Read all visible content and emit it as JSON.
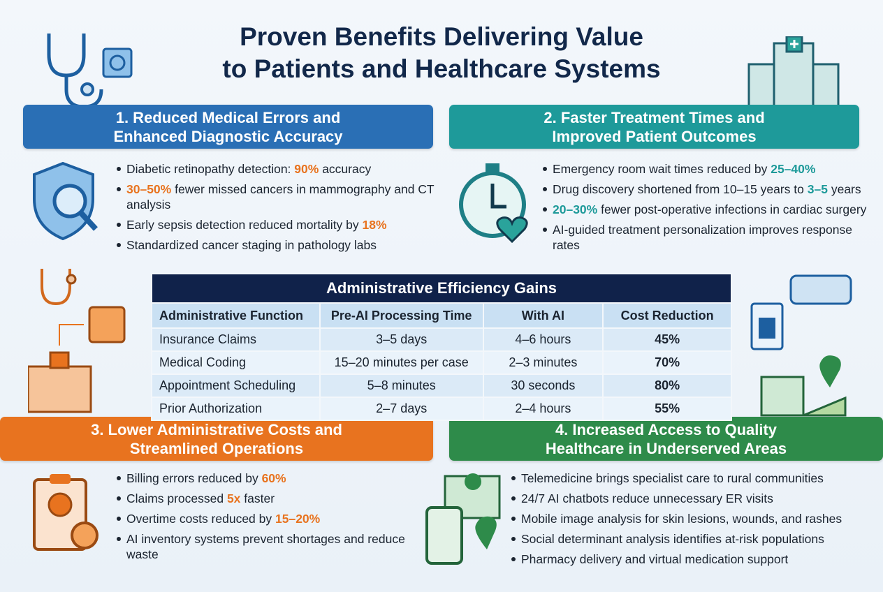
{
  "title": [
    "Proven Benefits Delivering Value",
    "to Patients and Healthcare Systems"
  ],
  "sections": [
    {
      "heading": [
        "1. Reduced Medical Errors and",
        "Enhanced Diagnostic Accuracy"
      ],
      "color": "#2a6fb5",
      "accent": "#e8731f",
      "bullets": [
        [
          {
            "t": "Diabetic retinopathy detection: "
          },
          {
            "t": "90%",
            "em": true
          },
          {
            "t": " accuracy"
          }
        ],
        [
          {
            "t": "30–50%",
            "em": true
          },
          {
            "t": " fewer missed cancers in mammography and CT analysis"
          }
        ],
        [
          {
            "t": "Early sepsis detection reduced mortality by "
          },
          {
            "t": "18%",
            "em": true
          }
        ],
        [
          {
            "t": "Standardized cancer staging in pathology labs"
          }
        ]
      ]
    },
    {
      "heading": [
        "2. Faster Treatment Times and",
        "Improved Patient Outcomes"
      ],
      "color": "#1e9a9a",
      "accent": "#1e9a9a",
      "bullets": [
        [
          {
            "t": "Emergency room wait times reduced by "
          },
          {
            "t": "25–40%",
            "em": true
          }
        ],
        [
          {
            "t": "Drug discovery shortened from 10–15 years to "
          },
          {
            "t": "3–5",
            "em": true
          },
          {
            "t": " years"
          }
        ],
        [
          {
            "t": "20–30%",
            "em": true
          },
          {
            "t": " fewer post-operative infections in cardiac surgery"
          }
        ],
        [
          {
            "t": "AI-guided treatment personalization improves response rates"
          }
        ]
      ]
    },
    {
      "heading": [
        "3. Lower Administrative Costs and",
        "Streamlined Operations"
      ],
      "color": "#e8731f",
      "accent": "#e8731f",
      "bullets": [
        [
          {
            "t": "Billing errors reduced by "
          },
          {
            "t": "60%",
            "em": true
          }
        ],
        [
          {
            "t": "Claims processed "
          },
          {
            "t": "5x",
            "em": true
          },
          {
            "t": " faster"
          }
        ],
        [
          {
            "t": "Overtime costs reduced by "
          },
          {
            "t": "15–20%",
            "em": true
          }
        ],
        [
          {
            "t": "AI inventory systems prevent shortages and reduce waste"
          }
        ]
      ]
    },
    {
      "heading": [
        "4. Increased Access to Quality",
        "Healthcare in Underserved Areas"
      ],
      "color": "#2e8b4a",
      "accent": "#2e8b4a",
      "bullets": [
        [
          {
            "t": "Telemedicine brings specialist care to rural communities"
          }
        ],
        [
          {
            "t": "24/7 AI chatbots reduce unnecessary ER visits"
          }
        ],
        [
          {
            "t": "Mobile image analysis for skin lesions, wounds, and rashes"
          }
        ],
        [
          {
            "t": "Social determinant analysis identifies at-risk populations"
          }
        ],
        [
          {
            "t": "Pharmacy delivery and virtual medication support"
          }
        ]
      ]
    }
  ],
  "table": {
    "title": "Administrative Efficiency Gains",
    "columns": [
      "Administrative Function",
      "Pre-AI Processing Time",
      "With AI",
      "Cost Reduction"
    ],
    "rows": [
      [
        "Insurance Claims",
        "3–5 days",
        "4–6 hours",
        "45%"
      ],
      [
        "Medical Coding",
        "15–20 minutes per case",
        "2–3 minutes",
        "70%"
      ],
      [
        "Appointment Scheduling",
        "5–8 minutes",
        "30 seconds",
        "80%"
      ],
      [
        "Prior Authorization",
        "2–7 days",
        "2–4 hours",
        "55%"
      ]
    ]
  }
}
